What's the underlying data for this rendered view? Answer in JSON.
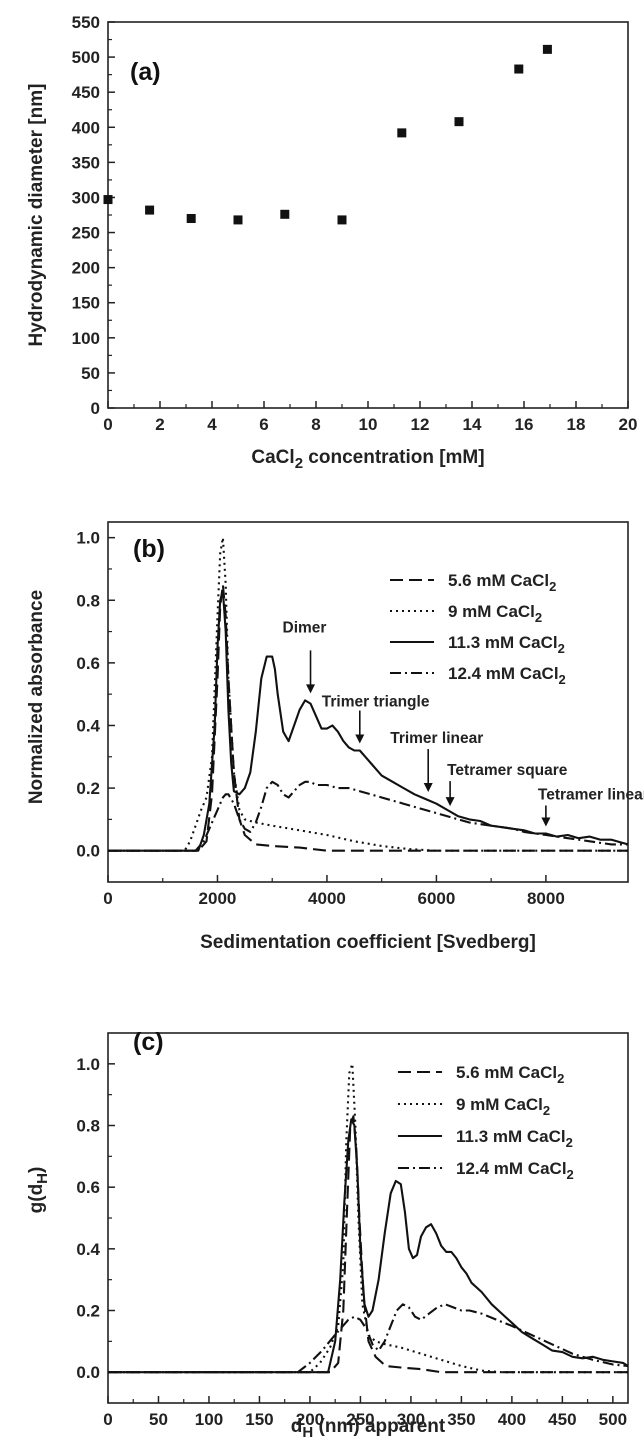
{
  "chart_data": [
    {
      "type": "scatter",
      "panel_label": "(a)",
      "xlabel": "CaCl2 concentration [mM]",
      "ylabel": "Hydrodynamic diameter [nm]",
      "xlim": [
        0,
        20
      ],
      "ylim": [
        0,
        550
      ],
      "xticks": [
        "0",
        "2",
        "4",
        "6",
        "8",
        "10",
        "12",
        "14",
        "16",
        "18",
        "20"
      ],
      "yticks": [
        "0",
        "50",
        "100",
        "150",
        "200",
        "250",
        "300",
        "350",
        "400",
        "450",
        "500",
        "550"
      ],
      "grid": false,
      "series": [
        {
          "x": [
            0,
            1.6,
            3.2,
            5.0,
            6.8,
            9.0,
            11.3,
            13.5,
            15.8,
            16.9
          ],
          "y": [
            297,
            282,
            270,
            268,
            276,
            268,
            392,
            408,
            483,
            511
          ]
        }
      ]
    },
    {
      "type": "line",
      "panel_label": "(b)",
      "xlabel": "Sedimentation coefficient [Svedberg]",
      "ylabel": "Normalized absorbance",
      "xlim": [
        0,
        9500
      ],
      "ylim": [
        -0.1,
        1.05
      ],
      "xticks": [
        "0",
        "2000",
        "4000",
        "6000",
        "8000"
      ],
      "yticks": [
        "0.0",
        "0.2",
        "0.4",
        "0.6",
        "0.8",
        "1.0"
      ],
      "legend_position": "top-right",
      "series": [
        {
          "name": "5.6 mM CaCl2",
          "style": "dashed",
          "x": [
            0,
            1650,
            1800,
            1900,
            2000,
            2050,
            2100,
            2150,
            2200,
            2300,
            2400,
            2500,
            2700,
            3000,
            3500,
            4000,
            9500
          ],
          "y": [
            0,
            0,
            0.03,
            0.18,
            0.55,
            0.78,
            0.85,
            0.75,
            0.55,
            0.25,
            0.1,
            0.05,
            0.02,
            0.015,
            0.01,
            0,
            0
          ]
        },
        {
          "name": "9 mM CaCl2",
          "style": "dotted",
          "x": [
            0,
            1400,
            1500,
            1600,
            1700,
            1800,
            1900,
            2000,
            2050,
            2100,
            2150,
            2200,
            2300,
            2400,
            2500,
            2700,
            3000,
            3500,
            4000,
            4500,
            5000,
            5500,
            6000,
            9500
          ],
          "y": [
            0,
            0,
            0.03,
            0.08,
            0.13,
            0.17,
            0.3,
            0.75,
            0.95,
            1.0,
            0.85,
            0.55,
            0.25,
            0.13,
            0.1,
            0.09,
            0.08,
            0.065,
            0.05,
            0.03,
            0.015,
            0.005,
            0,
            0
          ]
        },
        {
          "name": "11.3 mM CaCl2",
          "style": "solid",
          "x": [
            0,
            1650,
            1750,
            1850,
            1950,
            2000,
            2050,
            2100,
            2150,
            2200,
            2250,
            2300,
            2400,
            2500,
            2600,
            2700,
            2800,
            2900,
            3000,
            3050,
            3100,
            3200,
            3300,
            3400,
            3500,
            3600,
            3700,
            3800,
            3900,
            4000,
            4100,
            4200,
            4300,
            4400,
            4500,
            4600,
            4700,
            4800,
            4900,
            5000,
            5200,
            5400,
            5600,
            5800,
            6000,
            6200,
            6400,
            6600,
            6800,
            7000,
            7200,
            7400,
            7600,
            7800,
            8000,
            8200,
            8400,
            8600,
            8800,
            9000,
            9200,
            9400,
            9500
          ],
          "y": [
            0,
            0,
            0.05,
            0.15,
            0.4,
            0.65,
            0.8,
            0.83,
            0.7,
            0.45,
            0.28,
            0.19,
            0.18,
            0.2,
            0.25,
            0.38,
            0.55,
            0.62,
            0.62,
            0.58,
            0.5,
            0.38,
            0.35,
            0.4,
            0.45,
            0.48,
            0.47,
            0.43,
            0.39,
            0.39,
            0.4,
            0.38,
            0.35,
            0.33,
            0.32,
            0.32,
            0.3,
            0.28,
            0.26,
            0.24,
            0.22,
            0.2,
            0.18,
            0.165,
            0.15,
            0.13,
            0.11,
            0.1,
            0.095,
            0.08,
            0.075,
            0.07,
            0.065,
            0.055,
            0.055,
            0.045,
            0.05,
            0.04,
            0.045,
            0.035,
            0.035,
            0.025,
            0.02
          ]
        },
        {
          "name": "12.4 mM CaCl2",
          "style": "dash-dot",
          "x": [
            0,
            1600,
            1750,
            1850,
            1950,
            2000,
            2050,
            2100,
            2150,
            2200,
            2300,
            2400,
            2500,
            2600,
            2700,
            2800,
            2900,
            3000,
            3100,
            3200,
            3300,
            3400,
            3500,
            3600,
            3700,
            3800,
            4000,
            4200,
            4400,
            4600,
            4800,
            5000,
            5200,
            5400,
            5600,
            5800,
            6000,
            6200,
            6400,
            6600,
            6800,
            7000,
            7200,
            7400,
            7600,
            7800,
            8000,
            8200,
            8400,
            8600,
            8800,
            9000,
            9200,
            9500
          ],
          "y": [
            0,
            0,
            0.03,
            0.07,
            0.11,
            0.13,
            0.15,
            0.17,
            0.18,
            0.18,
            0.15,
            0.1,
            0.07,
            0.06,
            0.09,
            0.14,
            0.2,
            0.22,
            0.21,
            0.18,
            0.17,
            0.19,
            0.21,
            0.22,
            0.22,
            0.21,
            0.21,
            0.2,
            0.2,
            0.19,
            0.18,
            0.17,
            0.16,
            0.15,
            0.14,
            0.13,
            0.12,
            0.11,
            0.1,
            0.09,
            0.085,
            0.08,
            0.075,
            0.07,
            0.06,
            0.055,
            0.05,
            0.045,
            0.04,
            0.035,
            0.03,
            0.025,
            0.02,
            0.02
          ]
        }
      ],
      "annotations": [
        {
          "text": "Dimer",
          "x": 3700,
          "y": 0.48
        },
        {
          "text": "Trimer triangle",
          "x": 4600,
          "y": 0.32
        },
        {
          "text": "Trimer linear",
          "x": 5850,
          "y": 0.165
        },
        {
          "text": "Tetramer square",
          "x": 6250,
          "y": 0.12
        },
        {
          "text": "Tetramer linear",
          "x": 8000,
          "y": 0.055
        }
      ]
    },
    {
      "type": "line",
      "panel_label": "(c)",
      "xlabel": "dH (nm) apparent",
      "ylabel": "g(dH)",
      "xlim": [
        0,
        515
      ],
      "ylim": [
        -0.1,
        1.1
      ],
      "xticks": [
        "0",
        "50",
        "100",
        "150",
        "200",
        "250",
        "300",
        "350",
        "400",
        "450",
        "500"
      ],
      "yticks": [
        "0.0",
        "0.2",
        "0.4",
        "0.6",
        "0.8",
        "1.0"
      ],
      "legend_position": "top-right",
      "series": [
        {
          "name": "5.6 mM CaCl2",
          "style": "dashed",
          "x": [
            0,
            220,
            228,
            233,
            237,
            240,
            243,
            246,
            249,
            253,
            258,
            265,
            275,
            290,
            310,
            330,
            515
          ],
          "y": [
            0,
            0,
            0.03,
            0.2,
            0.55,
            0.8,
            0.83,
            0.72,
            0.5,
            0.25,
            0.1,
            0.05,
            0.02,
            0.015,
            0.01,
            0,
            0
          ]
        },
        {
          "name": "9 mM CaCl2",
          "style": "dotted",
          "x": [
            0,
            200,
            210,
            220,
            228,
            233,
            236,
            239,
            242,
            245,
            248,
            252,
            258,
            265,
            275,
            290,
            310,
            330,
            350,
            370,
            390,
            515
          ],
          "y": [
            0,
            0,
            0.03,
            0.08,
            0.15,
            0.35,
            0.75,
            0.97,
            1.0,
            0.8,
            0.5,
            0.22,
            0.12,
            0.1,
            0.09,
            0.08,
            0.06,
            0.04,
            0.02,
            0.005,
            0,
            0
          ]
        },
        {
          "name": "11.3 mM CaCl2",
          "style": "solid",
          "x": [
            0,
            218,
            225,
            230,
            234,
            238,
            241,
            244,
            247,
            250,
            254,
            258,
            262,
            268,
            274,
            280,
            285,
            290,
            294,
            298,
            302,
            306,
            310,
            315,
            320,
            325,
            330,
            335,
            340,
            345,
            350,
            355,
            360,
            370,
            380,
            390,
            400,
            410,
            420,
            430,
            440,
            450,
            460,
            470,
            480,
            490,
            500,
            510,
            515
          ],
          "y": [
            0,
            0,
            0.1,
            0.3,
            0.55,
            0.75,
            0.82,
            0.8,
            0.65,
            0.4,
            0.22,
            0.18,
            0.2,
            0.3,
            0.45,
            0.58,
            0.62,
            0.61,
            0.52,
            0.4,
            0.37,
            0.38,
            0.44,
            0.47,
            0.48,
            0.45,
            0.41,
            0.39,
            0.39,
            0.37,
            0.34,
            0.32,
            0.29,
            0.26,
            0.22,
            0.19,
            0.16,
            0.13,
            0.11,
            0.09,
            0.07,
            0.065,
            0.05,
            0.045,
            0.05,
            0.04,
            0.035,
            0.03,
            0.02
          ]
        },
        {
          "name": "12.4 mM CaCl2",
          "style": "dash-dot",
          "x": [
            0,
            188,
            200,
            212,
            222,
            230,
            238,
            244,
            250,
            256,
            262,
            268,
            274,
            280,
            286,
            292,
            298,
            304,
            310,
            318,
            326,
            334,
            342,
            350,
            358,
            370,
            385,
            400,
            420,
            440,
            460,
            480,
            500,
            515
          ],
          "y": [
            0,
            0,
            0.03,
            0.07,
            0.11,
            0.14,
            0.17,
            0.18,
            0.17,
            0.14,
            0.09,
            0.07,
            0.1,
            0.15,
            0.2,
            0.22,
            0.21,
            0.18,
            0.17,
            0.19,
            0.21,
            0.22,
            0.21,
            0.2,
            0.2,
            0.19,
            0.17,
            0.15,
            0.12,
            0.09,
            0.06,
            0.04,
            0.025,
            0.02
          ]
        }
      ]
    }
  ],
  "legend_labels": {
    "s1": "5.6 mM CaCl",
    "s2": "9 mM CaCl",
    "s3": "11.3 mM CaCl",
    "s4": "12.4 mM CaCl",
    "sub": "2"
  },
  "axis_text": {
    "a_xlabel_main": "CaCl",
    "a_xlabel_sub": "2",
    "a_xlabel_rest": " concentration [mM]",
    "c_xlabel_main": "d",
    "c_xlabel_sub": "H",
    "c_xlabel_rest": " (nm) apparent",
    "c_ylabel_main": "g(d",
    "c_ylabel_sub": "H",
    "c_ylabel_rest": ")"
  }
}
